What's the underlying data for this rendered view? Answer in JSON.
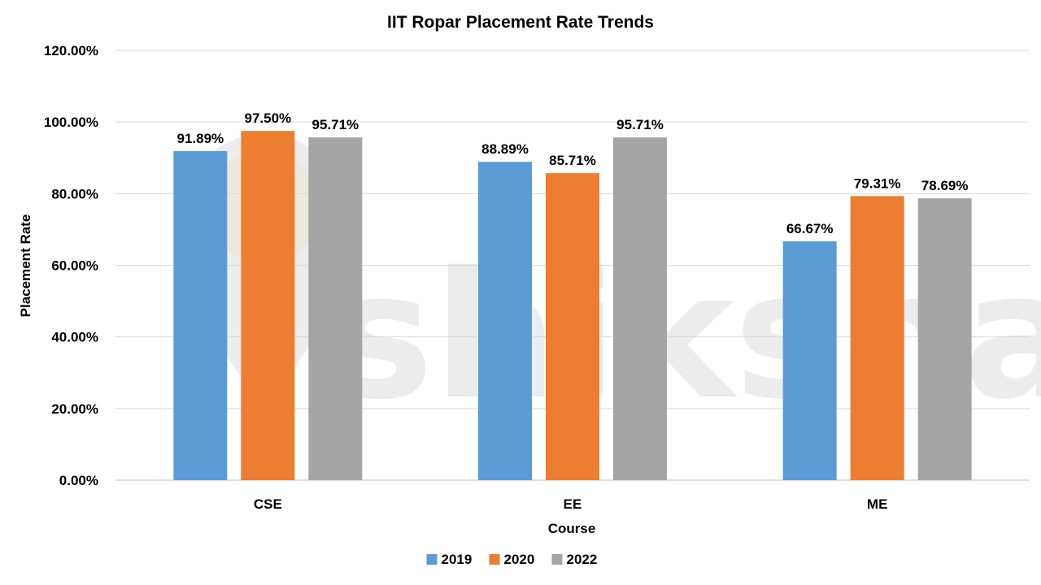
{
  "watermark": "shiksha",
  "colors": {
    "2019": "#5B9BD5",
    "2020": "#ED7D31",
    "2022": "#A5A5A5",
    "grid": "#D9D9D9"
  },
  "chart_data": {
    "type": "bar",
    "title": "IIT Ropar Placement Rate Trends",
    "xlabel": "Course",
    "ylabel": "Placement Rate",
    "categories": [
      "CSE",
      "EE",
      "ME"
    ],
    "series": [
      {
        "name": "2019",
        "values": [
          91.89,
          88.89,
          66.67
        ],
        "labels": [
          "91.89%",
          "88.89%",
          "66.67%"
        ]
      },
      {
        "name": "2020",
        "values": [
          97.5,
          85.71,
          79.31
        ],
        "labels": [
          "97.50%",
          "85.71%",
          "79.31%"
        ]
      },
      {
        "name": "2022",
        "values": [
          95.71,
          95.71,
          78.69
        ],
        "labels": [
          "95.71%",
          "95.71%",
          "78.69%"
        ]
      }
    ],
    "ylim": [
      0,
      120
    ],
    "yticks": [
      0,
      20,
      40,
      60,
      80,
      100,
      120
    ],
    "ytick_labels": [
      "0.00%",
      "20.00%",
      "40.00%",
      "60.00%",
      "80.00%",
      "100.00%",
      "120.00%"
    ],
    "grid": true,
    "legend_position": "bottom"
  }
}
